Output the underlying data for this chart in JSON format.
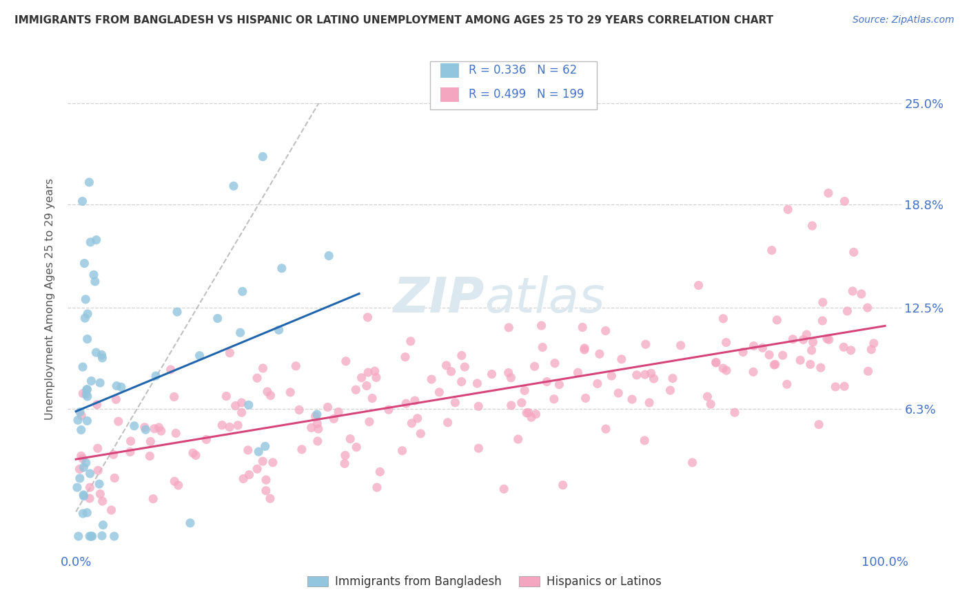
{
  "title": "IMMIGRANTS FROM BANGLADESH VS HISPANIC OR LATINO UNEMPLOYMENT AMONG AGES 25 TO 29 YEARS CORRELATION CHART",
  "source": "Source: ZipAtlas.com",
  "ylabel": "Unemployment Among Ages 25 to 29 years",
  "xlim": [
    -0.01,
    1.02
  ],
  "ylim": [
    -0.025,
    0.285
  ],
  "ytick_values": [
    0.063,
    0.125,
    0.188,
    0.25
  ],
  "ytick_labels": [
    "6.3%",
    "12.5%",
    "18.8%",
    "25.0%"
  ],
  "xtick_values": [
    0.0,
    1.0
  ],
  "xtick_labels": [
    "0.0%",
    "100.0%"
  ],
  "blue_R": 0.336,
  "blue_N": 62,
  "pink_R": 0.499,
  "pink_N": 199,
  "blue_color": "#92c5de",
  "pink_color": "#f4a6c0",
  "blue_line_color": "#2166ac",
  "pink_line_color": "#d6457a",
  "grid_color": "#cccccc",
  "background_color": "#ffffff",
  "title_color": "#333333",
  "source_color": "#4472c4",
  "axis_label_color": "#4472c4",
  "ylabel_color": "#555555",
  "watermark_color": "#dce8f0",
  "legend_label_blue": "Immigrants from Bangladesh",
  "legend_label_pink": "Hispanics or Latinos"
}
